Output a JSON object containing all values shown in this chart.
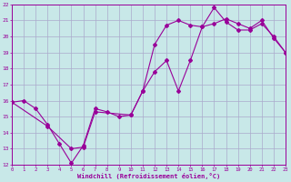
{
  "xlabel": "Windchill (Refroidissement éolien,°C)",
  "xlim": [
    0,
    23
  ],
  "ylim": [
    12,
    22
  ],
  "xticks": [
    0,
    1,
    2,
    3,
    4,
    5,
    6,
    7,
    8,
    9,
    10,
    11,
    12,
    13,
    14,
    15,
    16,
    17,
    18,
    19,
    20,
    21,
    22,
    23
  ],
  "yticks": [
    12,
    13,
    14,
    15,
    16,
    17,
    18,
    19,
    20,
    21,
    22
  ],
  "line1_x": [
    0,
    1,
    2,
    3,
    4,
    5,
    6,
    7,
    8,
    9,
    10,
    11,
    12,
    13,
    14,
    15,
    16,
    17,
    18,
    19,
    20,
    21,
    22,
    23
  ],
  "line1_y": [
    15.9,
    16.0,
    15.5,
    14.5,
    13.3,
    12.1,
    13.2,
    15.5,
    15.3,
    15.0,
    15.1,
    16.6,
    17.8,
    18.5,
    16.6,
    18.5,
    20.6,
    20.8,
    21.1,
    20.8,
    20.5,
    21.0,
    19.9,
    19.0
  ],
  "line2_x": [
    0,
    3,
    5,
    6,
    7,
    10,
    11,
    12,
    13,
    14,
    15,
    16,
    17,
    18,
    19,
    20,
    21,
    22,
    23
  ],
  "line2_y": [
    15.9,
    14.4,
    13.0,
    13.1,
    15.3,
    15.1,
    16.6,
    19.5,
    20.7,
    21.0,
    20.7,
    20.6,
    21.8,
    20.9,
    20.4,
    20.4,
    20.8,
    20.0,
    19.0
  ],
  "line_color": "#990099",
  "bg_color": "#c8e8e8",
  "grid_color": "#aaaacc",
  "tick_color": "#990099",
  "label_color": "#990099",
  "marker": "D",
  "markersize": 2.0,
  "linewidth": 0.8
}
